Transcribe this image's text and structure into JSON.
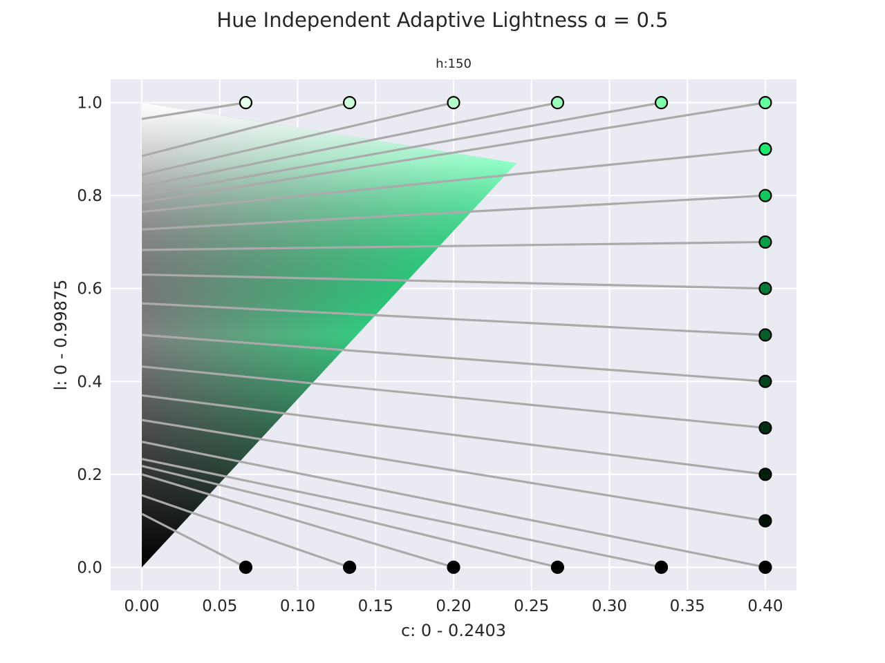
{
  "figure": {
    "title": "Hue Independent Adaptive Lightness ɑ = 0.5"
  },
  "chart_data": {
    "type": "scatter",
    "subtitle": "h:150",
    "xlabel": "c: 0 - 0.2403",
    "ylabel": "l: 0 - 0.99875",
    "xlim": [
      -0.02,
      0.42
    ],
    "ylim": [
      -0.05,
      1.05
    ],
    "xticks": [
      0.0,
      0.05,
      0.1,
      0.15,
      0.2,
      0.25,
      0.3,
      0.35,
      0.4
    ],
    "yticks": [
      0.0,
      0.2,
      0.4,
      0.6,
      0.8,
      1.0
    ],
    "xtick_labels": [
      "0.00",
      "0.05",
      "0.10",
      "0.15",
      "0.20",
      "0.25",
      "0.30",
      "0.35",
      "0.40"
    ],
    "ytick_labels": [
      "0.0",
      "0.2",
      "0.4",
      "0.6",
      "0.8",
      "1.0"
    ],
    "grid": true,
    "background": "#eaeaf2",
    "gamut": {
      "hue": 150,
      "cusp": {
        "c": 0.2403,
        "l": 0.87
      },
      "white": {
        "c": 0.0,
        "l": 1.0
      },
      "black": {
        "c": 0.0,
        "l": 0.0
      },
      "cusp_color": "#00ff80"
    },
    "projection_line_color": "#aaaaaa",
    "projections": [
      {
        "c": 0.0667,
        "l": 1.0,
        "target_l": 0.965,
        "fill": "#e6ffea"
      },
      {
        "c": 0.1333,
        "l": 1.0,
        "target_l": 0.885,
        "fill": "#ccffd9"
      },
      {
        "c": 0.2,
        "l": 1.0,
        "target_l": 0.845,
        "fill": "#b3ffc9"
      },
      {
        "c": 0.2667,
        "l": 1.0,
        "target_l": 0.82,
        "fill": "#99ffbb"
      },
      {
        "c": 0.3333,
        "l": 1.0,
        "target_l": 0.8,
        "fill": "#80ffac"
      },
      {
        "c": 0.4,
        "l": 1.0,
        "target_l": 0.785,
        "fill": "#66ff9e"
      },
      {
        "c": 0.4,
        "l": 0.9,
        "target_l": 0.765,
        "fill": "#1fe872"
      },
      {
        "c": 0.4,
        "l": 0.8,
        "target_l": 0.727,
        "fill": "#12c75e"
      },
      {
        "c": 0.4,
        "l": 0.7,
        "target_l": 0.683,
        "fill": "#0a9e48"
      },
      {
        "c": 0.4,
        "l": 0.6,
        "target_l": 0.63,
        "fill": "#077a37"
      },
      {
        "c": 0.4,
        "l": 0.5,
        "target_l": 0.568,
        "fill": "#055e2a"
      },
      {
        "c": 0.4,
        "l": 0.4,
        "target_l": 0.5,
        "fill": "#03451e"
      },
      {
        "c": 0.4,
        "l": 0.3,
        "target_l": 0.432,
        "fill": "#023015"
      },
      {
        "c": 0.4,
        "l": 0.2,
        "target_l": 0.37,
        "fill": "#011f0c"
      },
      {
        "c": 0.4,
        "l": 0.1,
        "target_l": 0.317,
        "fill": "#001206"
      },
      {
        "c": 0.4,
        "l": 0.0,
        "target_l": 0.27,
        "fill": "#000000"
      },
      {
        "c": 0.3333,
        "l": 0.0,
        "target_l": 0.233,
        "fill": "#000000"
      },
      {
        "c": 0.2667,
        "l": 0.0,
        "target_l": 0.218,
        "fill": "#000000"
      },
      {
        "c": 0.2,
        "l": 0.0,
        "target_l": 0.2,
        "fill": "#000000"
      },
      {
        "c": 0.1333,
        "l": 0.0,
        "target_l": 0.155,
        "fill": "#000000"
      },
      {
        "c": 0.0667,
        "l": 0.0,
        "target_l": 0.115,
        "fill": "#000000"
      }
    ]
  }
}
